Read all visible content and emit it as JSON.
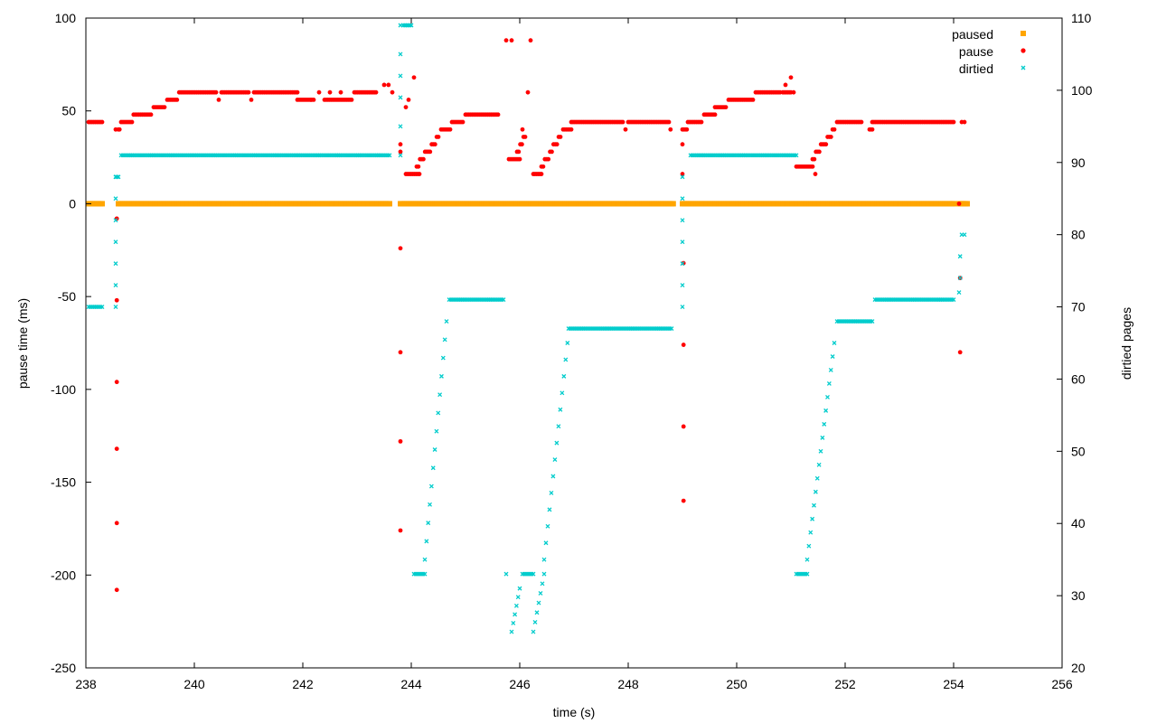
{
  "chart_data": {
    "type": "scatter",
    "xlabel": "time (s)",
    "ylabel": "pause time (ms)",
    "y2label": "dirtied pages",
    "xlim": [
      238,
      256
    ],
    "ylim": [
      -250,
      100
    ],
    "y2lim": [
      20,
      110
    ],
    "x_ticks": [
      "238",
      "240",
      "242",
      "244",
      "246",
      "248",
      "250",
      "252",
      "254",
      "256"
    ],
    "x_tick_values": [
      238,
      240,
      242,
      244,
      246,
      248,
      250,
      252,
      254,
      256
    ],
    "y_ticks": [
      "-250",
      "-200",
      "-150",
      "-100",
      "-50",
      "0",
      "50",
      "100"
    ],
    "y_tick_values": [
      -250,
      -200,
      -150,
      -100,
      -50,
      0,
      50,
      100
    ],
    "y2_ticks": [
      "20",
      "30",
      "40",
      "50",
      "60",
      "70",
      "80",
      "90",
      "100",
      "110"
    ],
    "y2_tick_values": [
      20,
      30,
      40,
      50,
      60,
      70,
      80,
      90,
      100,
      110
    ],
    "grid": false,
    "legend_position": "top-right",
    "colors": {
      "paused": "#ffa500",
      "pause": "#ff0000",
      "dirtied": "#00cccc"
    },
    "series": [
      {
        "name": "paused",
        "axis": "y",
        "marker": "square",
        "segments": [
          {
            "from": 238.05,
            "to": 238.3,
            "y": 0
          },
          {
            "from": 238.6,
            "to": 243.6,
            "y": 0
          },
          {
            "from": 243.8,
            "to": 248.83,
            "y": 0
          },
          {
            "from": 249.0,
            "to": 254.0,
            "y": 0
          },
          {
            "from": 254.1,
            "to": 254.25,
            "y": 0
          }
        ]
      },
      {
        "name": "pause",
        "axis": "y",
        "marker": "dot",
        "segments": [
          {
            "from": 238.05,
            "to": 238.3,
            "y1": 44,
            "y2": 44
          },
          {
            "from": 238.6,
            "to": 238.62,
            "y1": 40,
            "y2": 40
          },
          {
            "from": 238.65,
            "to": 238.85,
            "y1": 44,
            "y2": 44
          },
          {
            "from": 238.88,
            "to": 239.2,
            "y1": 48,
            "y2": 48
          },
          {
            "from": 239.25,
            "to": 239.45,
            "y1": 52,
            "y2": 52
          },
          {
            "from": 239.5,
            "to": 239.68,
            "y1": 56,
            "y2": 56
          },
          {
            "from": 239.72,
            "to": 240.4,
            "y1": 60,
            "y2": 60
          },
          {
            "from": 240.5,
            "to": 241.0,
            "y1": 60,
            "y2": 60
          },
          {
            "from": 241.1,
            "to": 241.9,
            "y1": 60,
            "y2": 60
          },
          {
            "from": 241.9,
            "to": 242.2,
            "y1": 56,
            "y2": 56
          },
          {
            "from": 242.4,
            "to": 242.9,
            "y1": 56,
            "y2": 56
          },
          {
            "from": 242.95,
            "to": 243.35,
            "y1": 60,
            "y2": 60
          },
          {
            "from": 243.9,
            "to": 244.15,
            "y1": 16,
            "y2": 16
          },
          {
            "from": 244.1,
            "to": 244.5,
            "y1": 20,
            "y2": 36
          },
          {
            "from": 244.55,
            "to": 244.95,
            "y1": 40,
            "y2": 44
          },
          {
            "from": 245.0,
            "to": 245.6,
            "y1": 48,
            "y2": 48
          },
          {
            "from": 245.8,
            "to": 246.0,
            "y1": 24,
            "y2": 24
          },
          {
            "from": 245.95,
            "to": 246.1,
            "y1": 28,
            "y2": 36
          },
          {
            "from": 246.25,
            "to": 246.4,
            "y1": 16,
            "y2": 16
          },
          {
            "from": 246.4,
            "to": 246.75,
            "y1": 20,
            "y2": 36
          },
          {
            "from": 246.8,
            "to": 246.95,
            "y1": 40,
            "y2": 40
          },
          {
            "from": 246.95,
            "to": 247.9,
            "y1": 44,
            "y2": 44
          },
          {
            "from": 248.0,
            "to": 248.75,
            "y1": 44,
            "y2": 44
          },
          {
            "from": 249.0,
            "to": 249.08,
            "y1": 40,
            "y2": 40
          },
          {
            "from": 249.1,
            "to": 249.35,
            "y1": 44,
            "y2": 44
          },
          {
            "from": 249.4,
            "to": 249.6,
            "y1": 48,
            "y2": 48
          },
          {
            "from": 249.6,
            "to": 249.8,
            "y1": 52,
            "y2": 52
          },
          {
            "from": 249.85,
            "to": 250.3,
            "y1": 56,
            "y2": 56
          },
          {
            "from": 250.35,
            "to": 250.8,
            "y1": 60,
            "y2": 60
          },
          {
            "from": 250.85,
            "to": 251.0,
            "y1": 60,
            "y2": 60
          },
          {
            "from": 251.1,
            "to": 251.4,
            "y1": 20,
            "y2": 20
          },
          {
            "from": 251.4,
            "to": 251.8,
            "y1": 24,
            "y2": 40
          },
          {
            "from": 251.85,
            "to": 252.3,
            "y1": 44,
            "y2": 44
          },
          {
            "from": 252.45,
            "to": 252.5,
            "y1": 40,
            "y2": 40
          },
          {
            "from": 252.5,
            "to": 254.0,
            "y1": 44,
            "y2": 44
          }
        ],
        "points": [
          [
            238.55,
            40
          ],
          [
            238.57,
            -8
          ],
          [
            238.57,
            -52
          ],
          [
            238.57,
            -96
          ],
          [
            238.57,
            -132
          ],
          [
            238.57,
            -172
          ],
          [
            238.57,
            -208
          ],
          [
            240.45,
            56
          ],
          [
            241.05,
            56
          ],
          [
            242.15,
            56
          ],
          [
            242.3,
            60
          ],
          [
            242.5,
            60
          ],
          [
            242.7,
            60
          ],
          [
            243.5,
            64
          ],
          [
            243.58,
            64
          ],
          [
            243.65,
            60
          ],
          [
            243.8,
            32
          ],
          [
            243.8,
            28
          ],
          [
            243.8,
            -24
          ],
          [
            243.8,
            -80
          ],
          [
            243.8,
            -128
          ],
          [
            243.8,
            -176
          ],
          [
            243.9,
            52
          ],
          [
            243.95,
            56
          ],
          [
            244.05,
            68
          ],
          [
            245.75,
            88
          ],
          [
            245.85,
            88
          ],
          [
            246.05,
            40
          ],
          [
            246.15,
            60
          ],
          [
            246.2,
            88
          ],
          [
            247.95,
            40
          ],
          [
            248.78,
            40
          ],
          [
            249.0,
            32
          ],
          [
            249.0,
            16
          ],
          [
            249.02,
            -32
          ],
          [
            249.02,
            -76
          ],
          [
            249.02,
            -120
          ],
          [
            249.02,
            -160
          ],
          [
            250.9,
            64
          ],
          [
            251.0,
            68
          ],
          [
            251.05,
            60
          ],
          [
            251.45,
            16
          ],
          [
            254.1,
            0
          ],
          [
            254.12,
            -40
          ],
          [
            254.12,
            -80
          ],
          [
            254.15,
            44
          ],
          [
            254.2,
            44
          ]
        ]
      },
      {
        "name": "dirtied",
        "axis": "y2",
        "marker": "cross",
        "segments": [
          {
            "from": 238.05,
            "to": 238.3,
            "y1": 70,
            "y2": 70
          },
          {
            "from": 238.55,
            "to": 238.6,
            "y1": 88,
            "y2": 88
          },
          {
            "from": 238.65,
            "to": 243.6,
            "y1": 91,
            "y2": 91
          },
          {
            "from": 243.85,
            "to": 244.0,
            "y1": 109,
            "y2": 109
          },
          {
            "from": 244.05,
            "to": 244.25,
            "y1": 33,
            "y2": 33
          },
          {
            "from": 244.25,
            "to": 244.65,
            "y1": 35,
            "y2": 68
          },
          {
            "from": 244.7,
            "to": 245.7,
            "y1": 71,
            "y2": 71
          },
          {
            "from": 245.85,
            "to": 246.0,
            "y1": 25,
            "y2": 31
          },
          {
            "from": 246.05,
            "to": 246.25,
            "y1": 33,
            "y2": 33
          },
          {
            "from": 246.25,
            "to": 246.45,
            "y1": 25,
            "y2": 33
          },
          {
            "from": 246.45,
            "to": 246.88,
            "y1": 35,
            "y2": 65
          },
          {
            "from": 246.9,
            "to": 248.8,
            "y1": 67,
            "y2": 67
          },
          {
            "from": 249.15,
            "to": 251.1,
            "y1": 91,
            "y2": 91
          },
          {
            "from": 251.1,
            "to": 251.3,
            "y1": 33,
            "y2": 33
          },
          {
            "from": 251.3,
            "to": 251.8,
            "y1": 35,
            "y2": 65
          },
          {
            "from": 251.85,
            "to": 252.5,
            "y1": 68,
            "y2": 68
          },
          {
            "from": 252.55,
            "to": 254.0,
            "y1": 71,
            "y2": 71
          }
        ],
        "points": [
          [
            238.55,
            70
          ],
          [
            238.55,
            73
          ],
          [
            238.55,
            76
          ],
          [
            238.55,
            79
          ],
          [
            238.55,
            82
          ],
          [
            238.55,
            85
          ],
          [
            238.55,
            88
          ],
          [
            243.8,
            91
          ],
          [
            243.8,
            95
          ],
          [
            243.8,
            99
          ],
          [
            243.8,
            102
          ],
          [
            243.8,
            105
          ],
          [
            243.8,
            109
          ],
          [
            245.75,
            33
          ],
          [
            249.0,
            70
          ],
          [
            249.0,
            73
          ],
          [
            249.0,
            76
          ],
          [
            249.0,
            79
          ],
          [
            249.0,
            82
          ],
          [
            249.0,
            85
          ],
          [
            249.0,
            88
          ],
          [
            254.1,
            72
          ],
          [
            254.12,
            74
          ],
          [
            254.12,
            77
          ],
          [
            254.15,
            80
          ],
          [
            254.2,
            80
          ]
        ]
      }
    ]
  }
}
